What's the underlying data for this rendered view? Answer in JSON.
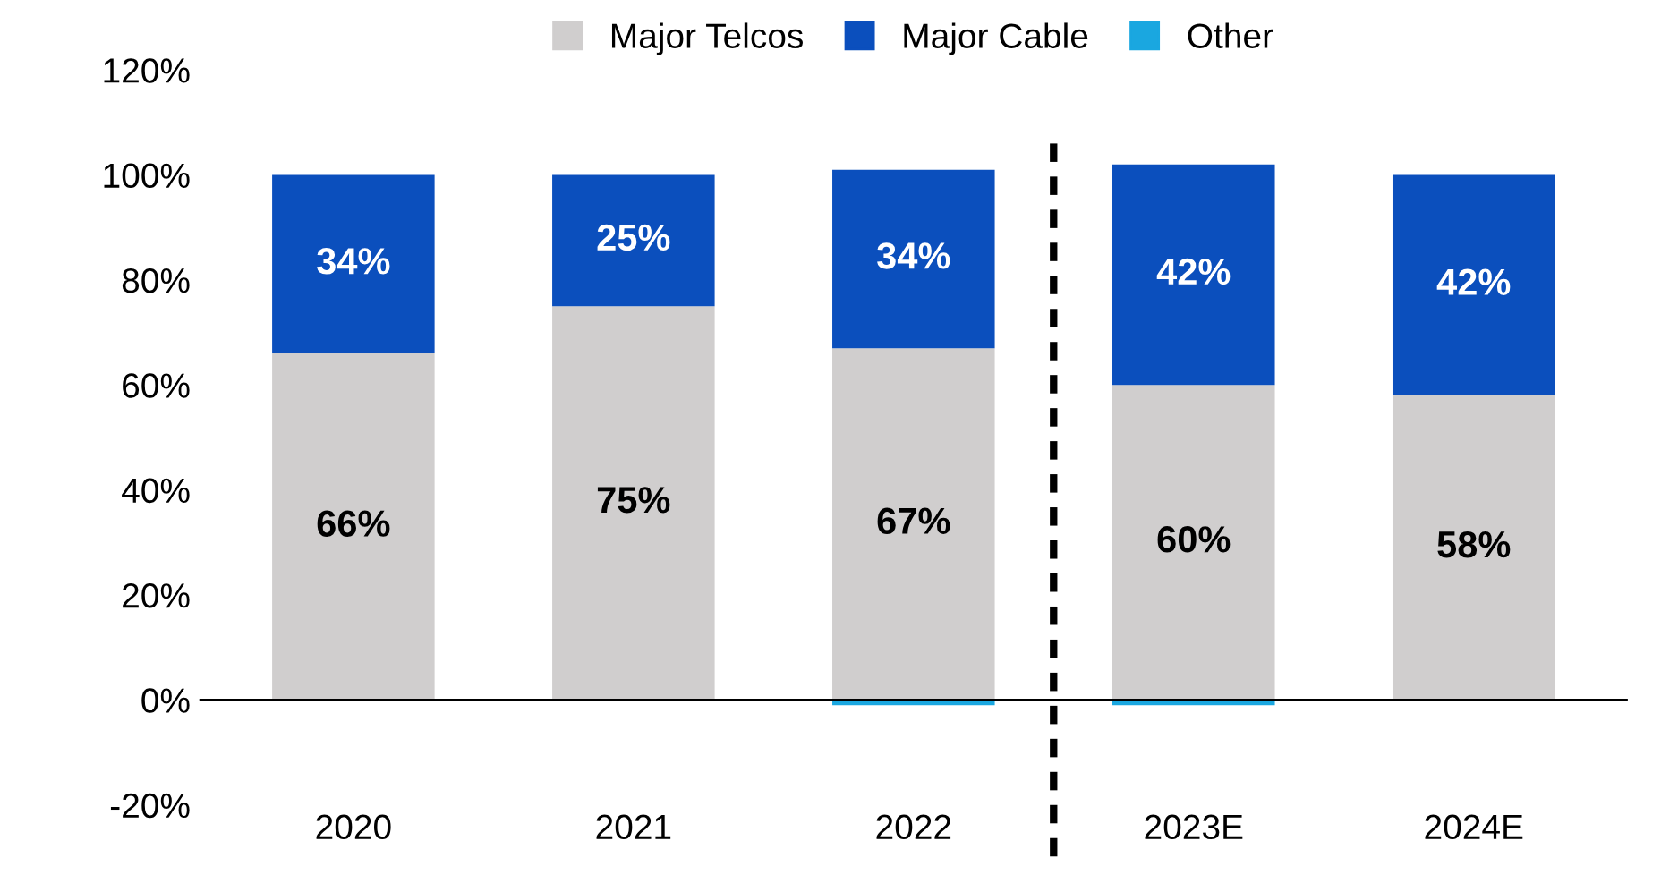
{
  "chart_data": {
    "type": "bar",
    "stacked": true,
    "categories": [
      "2020",
      "2021",
      "2022",
      "2023E",
      "2024E"
    ],
    "series": [
      {
        "name": "Major Telcos",
        "color": "#d0cece",
        "values": [
          66,
          75,
          67,
          60,
          58
        ],
        "value_labels": [
          "66%",
          "75%",
          "67%",
          "60%",
          "58%"
        ]
      },
      {
        "name": "Major Cable",
        "color": "#0b4fbd",
        "values": [
          34,
          25,
          34,
          42,
          42
        ],
        "value_labels": [
          "34%",
          "25%",
          "34%",
          "42%",
          "42%"
        ]
      },
      {
        "name": "Other",
        "color": "#1aa7e0",
        "values": [
          0,
          0,
          -1,
          -1,
          0
        ]
      }
    ],
    "ylim": [
      -20,
      120
    ],
    "yticks": [
      {
        "value": -20,
        "label": "-20%"
      },
      {
        "value": 0,
        "label": "0%"
      },
      {
        "value": 20,
        "label": "20%"
      },
      {
        "value": 40,
        "label": "40%"
      },
      {
        "value": 60,
        "label": "60%"
      },
      {
        "value": 80,
        "label": "80%"
      },
      {
        "value": 100,
        "label": "100%"
      },
      {
        "value": 120,
        "label": "120%"
      }
    ],
    "ref_lines": [
      {
        "axis": "y",
        "value": 0,
        "color": "#000000",
        "line_style": "solid"
      }
    ],
    "legend": "top",
    "grid": false
  }
}
